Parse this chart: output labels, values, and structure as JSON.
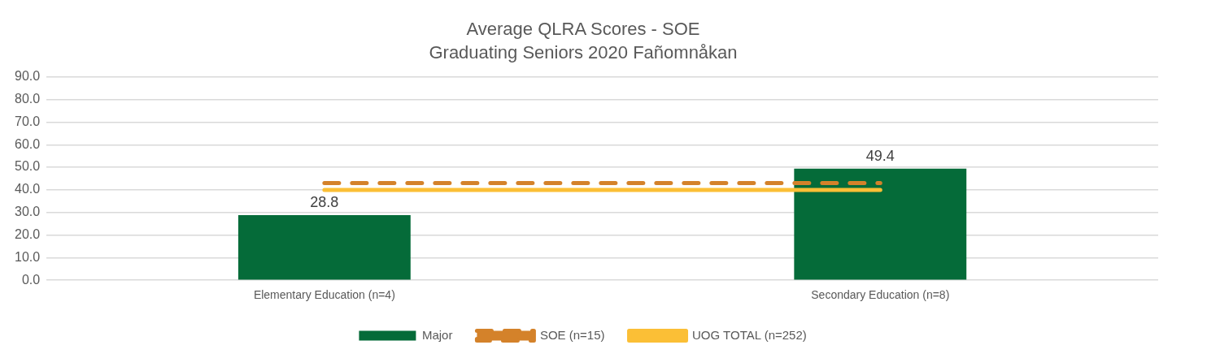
{
  "chart_data": {
    "type": "bar",
    "title": "Average QLRA Scores - SOE",
    "subtitle": "Graduating Seniors 2020 Fañomnåkan",
    "categories": [
      "Elementary Education (n=4)",
      "Secondary Education (n=8)"
    ],
    "series": [
      {
        "name": "Major",
        "color": "#056b39",
        "values": [
          28.8,
          49.4
        ],
        "value_labels": [
          "28.8",
          "49.4"
        ]
      },
      {
        "name": "SOE (n=15)",
        "type": "line",
        "color": "#d4822a",
        "values": [
          43.0,
          43.0
        ],
        "line_style": "dashed",
        "marker": "none"
      },
      {
        "name": "UOG TOTAL (n=252)",
        "type": "line",
        "color": "#fbbf36",
        "values": [
          40.0,
          40.0
        ],
        "line_style": "solid",
        "marker": "none"
      }
    ],
    "ylim": [
      0,
      90
    ],
    "yticks": [
      {
        "value": 0,
        "label": "0.0"
      },
      {
        "value": 10,
        "label": "10.0"
      },
      {
        "value": 20,
        "label": "20.0"
      },
      {
        "value": 30,
        "label": "30.0"
      },
      {
        "value": 40,
        "label": "40.0"
      },
      {
        "value": 50,
        "label": "50.0"
      },
      {
        "value": 60,
        "label": "60.0"
      },
      {
        "value": 70,
        "label": "70.0"
      },
      {
        "value": 80,
        "label": "80.0"
      },
      {
        "value": 90,
        "label": "90.0"
      }
    ],
    "grid": "y",
    "legend": "bottom"
  }
}
